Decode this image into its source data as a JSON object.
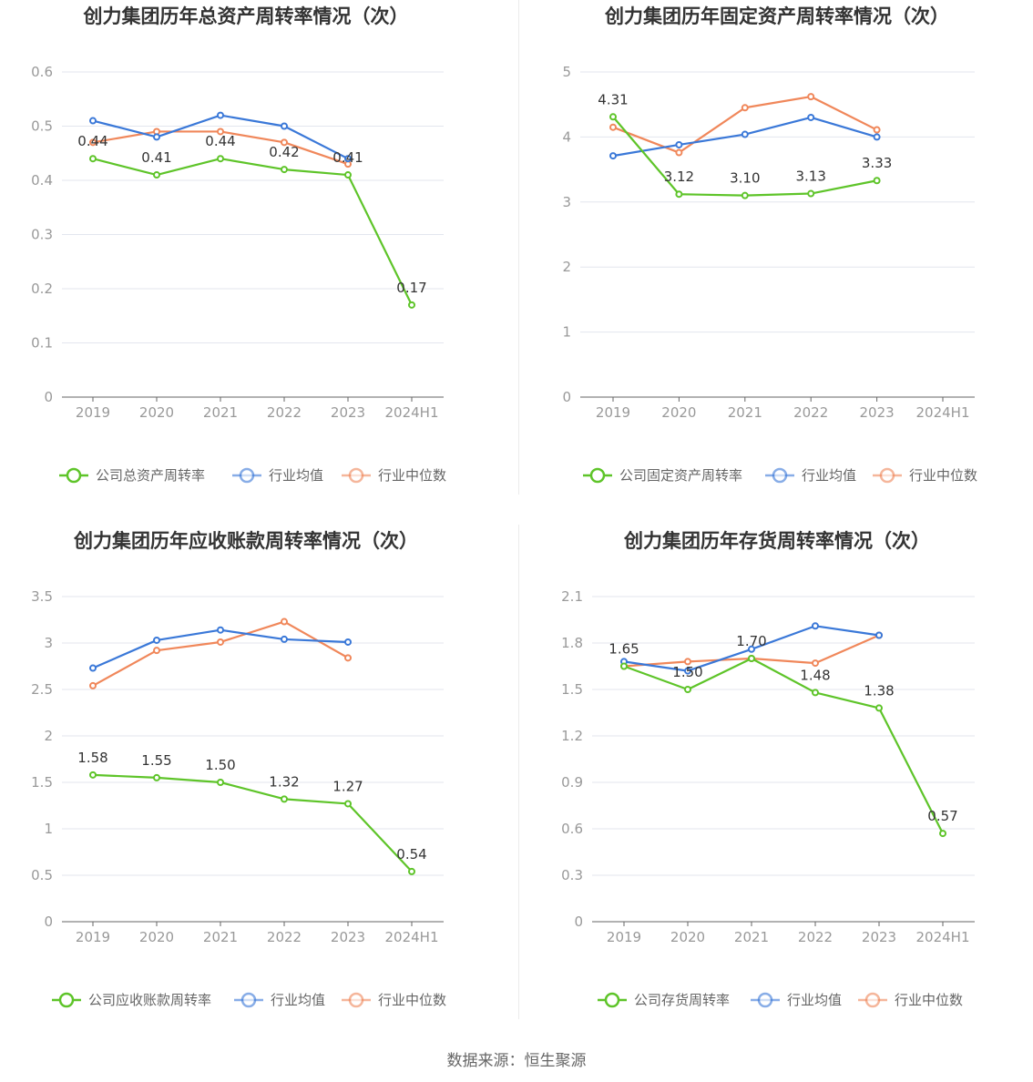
{
  "source": "数据来源：恒生聚源",
  "colors": {
    "company": "#5ec429",
    "avg": "#3a78d8",
    "median": "#f0875a",
    "grid": "#e3e6ee",
    "axis": "#666666"
  },
  "chart_data": [
    {
      "type": "line",
      "title": "创力集团历年总资产周转率情况（次）",
      "categories": [
        "2019",
        "2020",
        "2021",
        "2022",
        "2023",
        "2024H1"
      ],
      "ylim": [
        0,
        0.6
      ],
      "yticks": [
        0,
        0.1,
        0.2,
        0.3,
        0.4,
        0.5,
        0.6
      ],
      "ytick_labels": [
        "0",
        "0.1",
        "0.2",
        "0.3",
        "0.4",
        "0.5",
        "0.6"
      ],
      "grid": true,
      "legend_position": "bottom",
      "series": [
        {
          "key": "company",
          "name": "公司总资产周转率",
          "values": [
            0.44,
            0.41,
            0.44,
            0.42,
            0.41,
            0.17
          ],
          "labels": [
            "0.44",
            "0.41",
            "0.44",
            "0.42",
            "0.41",
            "0.17"
          ]
        },
        {
          "key": "avg",
          "name": "行业均值",
          "values": [
            0.51,
            0.48,
            0.52,
            0.5,
            0.44,
            null
          ]
        },
        {
          "key": "median",
          "name": "行业中位数",
          "values": [
            0.47,
            0.49,
            0.49,
            0.47,
            0.43,
            null
          ]
        }
      ]
    },
    {
      "type": "line",
      "title": "创力集团历年固定资产周转率情况（次）",
      "categories": [
        "2019",
        "2020",
        "2021",
        "2022",
        "2023",
        "2024H1"
      ],
      "ylim": [
        0,
        5
      ],
      "yticks": [
        0,
        1,
        2,
        3,
        4,
        5
      ],
      "ytick_labels": [
        "0",
        "1",
        "2",
        "3",
        "4",
        "5"
      ],
      "grid": true,
      "legend_position": "bottom",
      "series": [
        {
          "key": "company",
          "name": "公司固定资产周转率",
          "values": [
            4.31,
            3.12,
            3.1,
            3.13,
            3.33,
            null
          ],
          "labels": [
            "4.31",
            "3.12",
            "3.10",
            "3.13",
            "3.33",
            null
          ]
        },
        {
          "key": "avg",
          "name": "行业均值",
          "values": [
            3.71,
            3.88,
            4.04,
            4.3,
            4.0,
            null
          ]
        },
        {
          "key": "median",
          "name": "行业中位数",
          "values": [
            4.15,
            3.76,
            4.45,
            4.62,
            4.11,
            null
          ]
        }
      ]
    },
    {
      "type": "line",
      "title": "创力集团历年应收账款周转率情况（次）",
      "categories": [
        "2019",
        "2020",
        "2021",
        "2022",
        "2023",
        "2024H1"
      ],
      "ylim": [
        0,
        3.5
      ],
      "yticks": [
        0,
        0.5,
        1,
        1.5,
        2,
        2.5,
        3,
        3.5
      ],
      "ytick_labels": [
        "0",
        "0.5",
        "1",
        "1.5",
        "2",
        "2.5",
        "3",
        "3.5"
      ],
      "grid": true,
      "legend_position": "bottom",
      "series": [
        {
          "key": "company",
          "name": "公司应收账款周转率",
          "values": [
            1.58,
            1.55,
            1.5,
            1.32,
            1.27,
            0.54
          ],
          "labels": [
            "1.58",
            "1.55",
            "1.50",
            "1.32",
            "1.27",
            "0.54"
          ]
        },
        {
          "key": "avg",
          "name": "行业均值",
          "values": [
            2.73,
            3.03,
            3.14,
            3.04,
            3.01,
            null
          ]
        },
        {
          "key": "median",
          "name": "行业中位数",
          "values": [
            2.54,
            2.92,
            3.01,
            3.23,
            2.84,
            null
          ]
        }
      ]
    },
    {
      "type": "line",
      "title": "创力集团历年存货周转率情况（次）",
      "categories": [
        "2019",
        "2020",
        "2021",
        "2022",
        "2023",
        "2024H1"
      ],
      "ylim": [
        0,
        2.1
      ],
      "yticks": [
        0,
        0.3,
        0.6,
        0.9,
        1.2,
        1.5,
        1.8,
        2.1
      ],
      "ytick_labels": [
        "0",
        "0.3",
        "0.6",
        "0.9",
        "1.2",
        "1.5",
        "1.8",
        "2.1"
      ],
      "grid": true,
      "legend_position": "bottom",
      "series": [
        {
          "key": "company",
          "name": "公司存货周转率",
          "values": [
            1.65,
            1.5,
            1.7,
            1.48,
            1.38,
            0.57
          ],
          "labels": [
            "1.65",
            "1.50",
            "1.70",
            "1.48",
            "1.38",
            "0.57"
          ]
        },
        {
          "key": "avg",
          "name": "行业均值",
          "values": [
            1.68,
            1.62,
            1.76,
            1.91,
            1.85,
            null
          ]
        },
        {
          "key": "median",
          "name": "行业中位数",
          "values": [
            1.65,
            1.68,
            1.7,
            1.67,
            1.85,
            null
          ]
        }
      ]
    }
  ]
}
